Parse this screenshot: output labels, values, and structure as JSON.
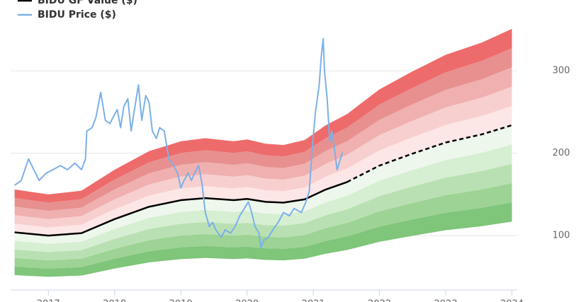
{
  "chart_data": {
    "type": "line",
    "xlim": [
      2016.43,
      2024.08
    ],
    "ylim": [
      34,
      386
    ],
    "xticks": [
      2017,
      2018,
      2019,
      2020,
      2021,
      2022,
      2023,
      2024
    ],
    "yticks": [
      100,
      200,
      300
    ],
    "grid": true,
    "x": [
      2016.49,
      2017,
      2017.5,
      2018,
      2018.52,
      2019,
      2019.37,
      2019.8,
      2020,
      2020.28,
      2020.55,
      2020.87,
      2021.19,
      2021.51,
      2022,
      2022.48,
      2023,
      2023.55,
      2024
    ],
    "series": [
      {
        "name": "BIDU GF Value ($)",
        "color": "#000000",
        "dashed_from_x": 2021.51,
        "values": [
          104,
          100,
          103,
          120,
          135,
          143,
          145.5,
          143,
          144.5,
          141,
          140,
          144,
          156,
          165,
          185,
          199,
          213,
          223,
          234
        ]
      },
      {
        "name": "BIDU Price ($)",
        "color": "#7cb0e8",
        "x": [
          2016.49,
          2016.59,
          2016.7,
          2016.75,
          2016.86,
          2016.97,
          2017.07,
          2017.18,
          2017.29,
          2017.4,
          2017.5,
          2017.56,
          2017.58,
          2017.66,
          2017.72,
          2017.79,
          2017.86,
          2017.93,
          2017.98,
          2018.04,
          2018.09,
          2018.14,
          2018.2,
          2018.25,
          2018.3,
          2018.36,
          2018.41,
          2018.47,
          2018.52,
          2018.57,
          2018.63,
          2018.68,
          2018.75,
          2018.82,
          2018.89,
          2018.95,
          2019,
          2019.05,
          2019.11,
          2019.16,
          2019.21,
          2019.27,
          2019.32,
          2019.37,
          2019.43,
          2019.48,
          2019.53,
          2019.61,
          2019.67,
          2019.75,
          2019.82,
          2019.89,
          2019.96,
          2020.02,
          2020.07,
          2020.12,
          2020.18,
          2020.21,
          2020.25,
          2020.32,
          2020.39,
          2020.47,
          2020.55,
          2020.64,
          2020.71,
          2020.82,
          2020.89,
          2020.94,
          2020.98,
          2021.03,
          2021.09,
          2021.12,
          2021.15,
          2021.17,
          2021.21,
          2021.25,
          2021.28,
          2021.32,
          2021.36,
          2021.41,
          2021.44
        ],
        "values": [
          161,
          167,
          193,
          185,
          167,
          176,
          180,
          185,
          180,
          188,
          180,
          193,
          227,
          231,
          244,
          274,
          240,
          236,
          244,
          253,
          231,
          257,
          266,
          227,
          253,
          283,
          240,
          270,
          262,
          227,
          218,
          231,
          227,
          193,
          185,
          176,
          158,
          167,
          176,
          167,
          176,
          185,
          163,
          128,
          111,
          116,
          107,
          98,
          107,
          103,
          111,
          124,
          133,
          141,
          128,
          111,
          103,
          85,
          94,
          98,
          107,
          116,
          128,
          124,
          133,
          128,
          141,
          154,
          201,
          248,
          283,
          317,
          339,
          300,
          266,
          214,
          227,
          205,
          180,
          193,
          201
        ]
      }
    ],
    "band_colors": [
      "#7fc57a",
      "#9dd394",
      "#b9e0b2",
      "#d6eed2",
      "#eef7ec",
      "#fde6e6",
      "#f8cfcf",
      "#f0b0b0",
      "#e89090",
      "#ee6b6b"
    ],
    "band_edges": [
      [
        52,
        50,
        51.5,
        60,
        67.5,
        71.5,
        72.8,
        71.5,
        72.3,
        70.5,
        70,
        72,
        78,
        82.5,
        92.5,
        99.5,
        106.5,
        111.5,
        117
      ],
      [
        62.4,
        60,
        61.8,
        72,
        81,
        85.8,
        87.3,
        85.8,
        86.7,
        84.6,
        84,
        86.4,
        93.6,
        99,
        111,
        119.4,
        127.8,
        133.8,
        140.4
      ],
      [
        72.8,
        70,
        72.1,
        84,
        94.5,
        100.1,
        101.9,
        100.1,
        101.2,
        98.7,
        98,
        100.8,
        109.2,
        115.5,
        129.5,
        139.3,
        149.1,
        156.1,
        163.8
      ],
      [
        83.2,
        80,
        82.4,
        96,
        108,
        114.4,
        116.4,
        114.4,
        115.6,
        112.8,
        112,
        115.2,
        124.8,
        132,
        148,
        159.2,
        170.4,
        178.4,
        187.2
      ],
      [
        93.6,
        90,
        92.7,
        108,
        121.5,
        128.7,
        131,
        128.7,
        130.1,
        126.9,
        126,
        129.6,
        140.4,
        148.5,
        166.5,
        179.1,
        191.7,
        200.7,
        210.6
      ],
      [
        104,
        100,
        103,
        120,
        135,
        143,
        145.5,
        143,
        144.5,
        141,
        140,
        144,
        156,
        165,
        185,
        199,
        213,
        223,
        234
      ],
      [
        114.4,
        110,
        113.3,
        132,
        148.5,
        157.3,
        160.1,
        157.3,
        159,
        155.1,
        154,
        158.4,
        171.6,
        181.5,
        203.5,
        218.9,
        234.3,
        245.3,
        257.4
      ],
      [
        124.8,
        120,
        123.6,
        144,
        162,
        171.6,
        174.6,
        171.6,
        173.4,
        169.2,
        168,
        172.8,
        187.2,
        198,
        222,
        238.8,
        255.6,
        267.6,
        280.8
      ],
      [
        135.2,
        130,
        133.9,
        156,
        175.5,
        185.9,
        189.2,
        185.9,
        187.9,
        183.3,
        182,
        187.2,
        202.8,
        214.5,
        240.5,
        258.7,
        276.9,
        289.9,
        304.2
      ],
      [
        145.6,
        140,
        144.2,
        168,
        189,
        200.2,
        203.7,
        200.2,
        202.3,
        197.4,
        196,
        201.6,
        218.4,
        231,
        259,
        278.6,
        298.2,
        312.2,
        327.6
      ],
      [
        156,
        150,
        154.5,
        180,
        202.5,
        214.5,
        218.3,
        214.5,
        216.8,
        211.5,
        210,
        216,
        234,
        247.5,
        277.5,
        298.5,
        319.5,
        334.5,
        351
      ]
    ]
  }
}
